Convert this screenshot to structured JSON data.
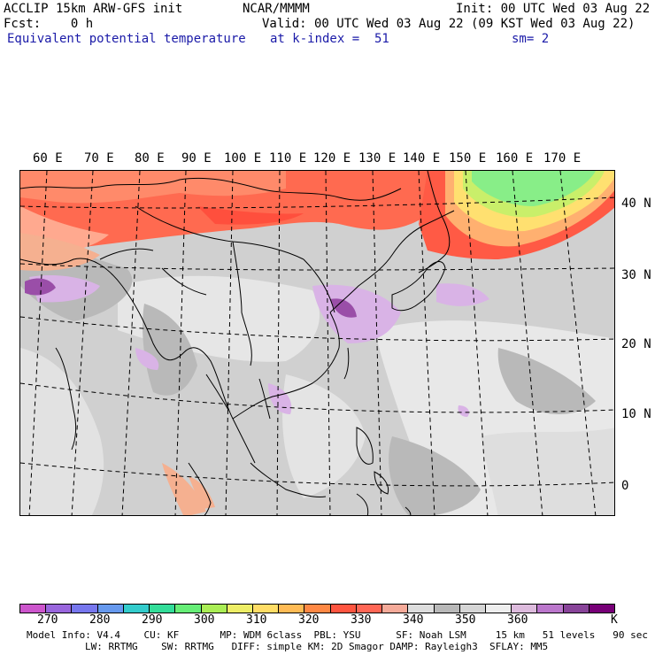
{
  "header": {
    "model": "ACCLIP 15km ARW-GFS init",
    "center": "NCAR/MMMM",
    "init": "Init: 00 UTC Wed 03 Aug 22",
    "fcst": "Fcst:    0 h",
    "valid": "Valid: 00 UTC Wed 03 Aug 22 (09 KST Wed 03 Aug 22)",
    "field": "Equivalent potential temperature",
    "level": "at k-index =  51",
    "smooth": "sm= 2"
  },
  "map": {
    "lon_labels": [
      "60 E",
      "70 E",
      "80 E",
      "90 E",
      "100 E",
      "110 E",
      "120 E",
      "130 E",
      "140 E",
      "150 E",
      "160 E",
      "170 E"
    ],
    "lat_labels": [
      "40 N",
      "30 N",
      "20 N",
      "10 N",
      "0"
    ]
  },
  "colorbar": {
    "unit": "K",
    "labels": [
      "270",
      "280",
      "290",
      "300",
      "310",
      "320",
      "330",
      "340",
      "350",
      "360"
    ],
    "colors": [
      "#cc55cc",
      "#9966dd",
      "#7777ee",
      "#6699ee",
      "#33cccc",
      "#33dd99",
      "#66ee77",
      "#aaee55",
      "#eeee66",
      "#ffdd66",
      "#ffbb55",
      "#ff8844",
      "#ff5540",
      "#ff6655",
      "#f5aa99",
      "#dddddd",
      "#b8b8b8",
      "#d5d5d5",
      "#eeeeee",
      "#ddbbdd",
      "#bb77cc",
      "#884499",
      "#770077"
    ]
  },
  "model_info": {
    "line1": "Model Info: V4.4    CU: KF       MP: WDM 6class  PBL: YSU      SF: Noah LSM     15 km   51 levels   90 sec",
    "line2": "LW: RRTMG    SW: RRTMG   DIFF: simple KM: 2D Smagor DAMP: Rayleigh3  SFLAY: MM5"
  }
}
